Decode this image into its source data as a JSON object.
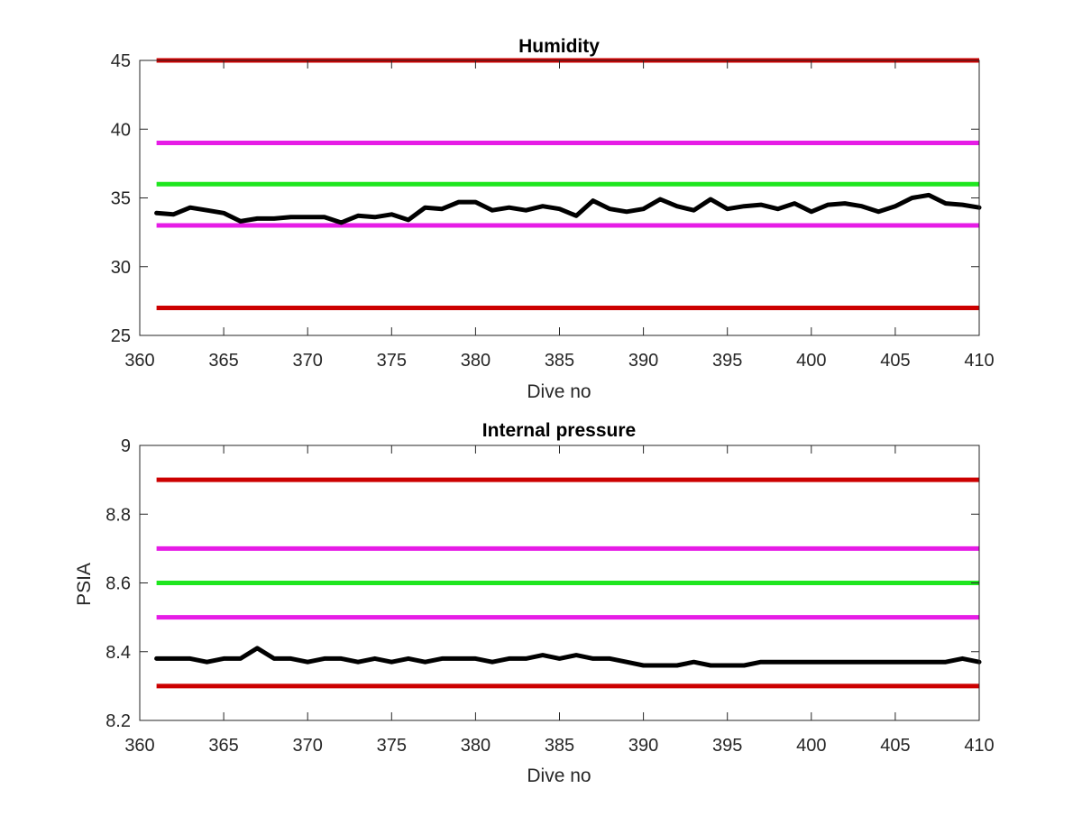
{
  "colors": {
    "red": "#cc0000",
    "magenta": "#e61ce6",
    "green": "#1ee61e",
    "black": "#000000",
    "axis": "#262626"
  },
  "chart_data": [
    {
      "type": "line",
      "title": "Humidity",
      "xlabel": "Dive no",
      "ylabel": "",
      "xlim": [
        360,
        410
      ],
      "ylim": [
        25,
        45
      ],
      "xticks": [
        360,
        365,
        370,
        375,
        380,
        385,
        390,
        395,
        400,
        405,
        410
      ],
      "yticks": [
        25,
        30,
        35,
        40,
        45
      ],
      "xtick_labels": [
        "360",
        "365",
        "370",
        "375",
        "380",
        "385",
        "390",
        "395",
        "400",
        "405",
        "410"
      ],
      "ytick_labels": [
        "25",
        "30",
        "35",
        "40",
        "45"
      ],
      "grid": false,
      "reference_lines": [
        {
          "y": 45,
          "color": "red"
        },
        {
          "y": 39,
          "color": "magenta"
        },
        {
          "y": 36,
          "color": "green"
        },
        {
          "y": 33,
          "color": "magenta"
        },
        {
          "y": 27,
          "color": "red"
        }
      ],
      "series": [
        {
          "color": "black",
          "x": [
            361,
            362,
            363,
            364,
            365,
            366,
            367,
            368,
            369,
            370,
            371,
            372,
            373,
            374,
            375,
            376,
            377,
            378,
            379,
            380,
            381,
            382,
            383,
            384,
            385,
            386,
            387,
            388,
            389,
            390,
            391,
            392,
            393,
            394,
            395,
            396,
            397,
            398,
            399,
            400,
            401,
            402,
            403,
            404,
            405,
            406,
            407,
            408,
            409,
            410
          ],
          "y": [
            33.9,
            33.8,
            34.3,
            34.1,
            33.9,
            33.3,
            33.5,
            33.5,
            33.6,
            33.6,
            33.6,
            33.2,
            33.7,
            33.6,
            33.8,
            33.4,
            34.3,
            34.2,
            34.7,
            34.7,
            34.1,
            34.3,
            34.1,
            34.4,
            34.2,
            33.7,
            34.8,
            34.2,
            34.0,
            34.2,
            34.9,
            34.4,
            34.1,
            34.9,
            34.2,
            34.4,
            34.5,
            34.2,
            34.6,
            34.0,
            34.5,
            34.6,
            34.4,
            34.0,
            34.4,
            35.0,
            35.2,
            34.6,
            34.5,
            34.3
          ]
        }
      ]
    },
    {
      "type": "line",
      "title": "Internal pressure",
      "xlabel": "Dive no",
      "ylabel": "PSIA",
      "xlim": [
        360,
        410
      ],
      "ylim": [
        8.2,
        9.0
      ],
      "xticks": [
        360,
        365,
        370,
        375,
        380,
        385,
        390,
        395,
        400,
        405,
        410
      ],
      "yticks": [
        8.2,
        8.4,
        8.6,
        8.8,
        9.0
      ],
      "xtick_labels": [
        "360",
        "365",
        "370",
        "375",
        "380",
        "385",
        "390",
        "395",
        "400",
        "405",
        "410"
      ],
      "ytick_labels": [
        "8.2",
        "8.4",
        "8.6",
        "8.8",
        "9"
      ],
      "grid": false,
      "reference_lines": [
        {
          "y": 8.9,
          "color": "red"
        },
        {
          "y": 8.7,
          "color": "magenta"
        },
        {
          "y": 8.6,
          "color": "green"
        },
        {
          "y": 8.5,
          "color": "magenta"
        },
        {
          "y": 8.3,
          "color": "red"
        }
      ],
      "series": [
        {
          "color": "black",
          "x": [
            361,
            362,
            363,
            364,
            365,
            366,
            367,
            368,
            369,
            370,
            371,
            372,
            373,
            374,
            375,
            376,
            377,
            378,
            379,
            380,
            381,
            382,
            383,
            384,
            385,
            386,
            387,
            388,
            389,
            390,
            391,
            392,
            393,
            394,
            395,
            396,
            397,
            398,
            399,
            400,
            401,
            402,
            403,
            404,
            405,
            406,
            407,
            408,
            409,
            410
          ],
          "y": [
            8.38,
            8.38,
            8.38,
            8.37,
            8.38,
            8.38,
            8.41,
            8.38,
            8.38,
            8.37,
            8.38,
            8.38,
            8.37,
            8.38,
            8.37,
            8.38,
            8.37,
            8.38,
            8.38,
            8.38,
            8.37,
            8.38,
            8.38,
            8.39,
            8.38,
            8.39,
            8.38,
            8.38,
            8.37,
            8.36,
            8.36,
            8.36,
            8.37,
            8.36,
            8.36,
            8.36,
            8.37,
            8.37,
            8.37,
            8.37,
            8.37,
            8.37,
            8.37,
            8.37,
            8.37,
            8.37,
            8.37,
            8.37,
            8.38,
            8.37
          ]
        }
      ]
    }
  ]
}
